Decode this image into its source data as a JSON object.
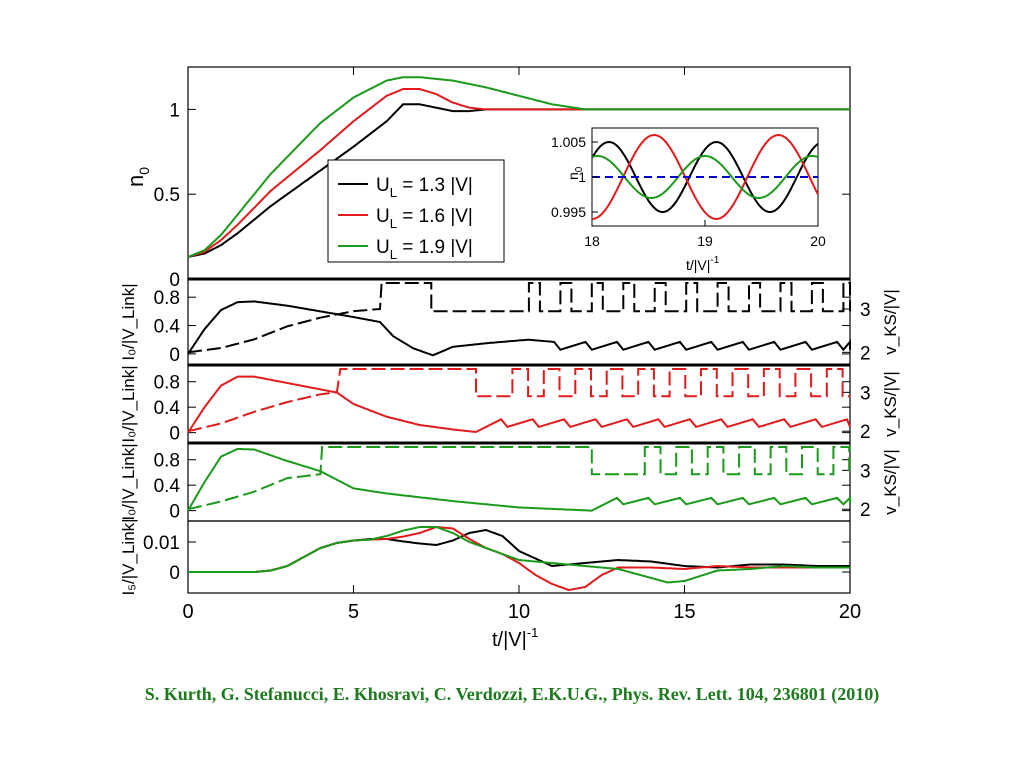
{
  "citation": "S. Kurth, G. Stefanucci, E. Khosravi, C. Verdozzi, E.K.U.G., Phys. Rev. Lett. 104, 236801 (2010)",
  "colors": {
    "black": "#000000",
    "red": "#e31a1c",
    "green": "#1a9a1a",
    "blue": "#0000cc",
    "citation": "#1e7a1e"
  },
  "chart_data": [
    {
      "type": "line",
      "ylabel": "n",
      "ylabel_sub": "0",
      "xlim": [
        0,
        20
      ],
      "ylim": [
        0,
        1.25
      ],
      "yticks": [
        "0",
        "0.5",
        "1"
      ],
      "legend_position": "center",
      "series": [
        {
          "name": "U_L = 1.3 |V|",
          "label_main": "U",
          "label_sub": "L",
          "label_rest": " = 1.3 |V|",
          "color": "black",
          "x": [
            0,
            0.5,
            1,
            1.5,
            2,
            2.5,
            3,
            4,
            5,
            6,
            6.5,
            7,
            7.5,
            8,
            8.5,
            9,
            10,
            12,
            14,
            16,
            18,
            20
          ],
          "y": [
            0.13,
            0.15,
            0.2,
            0.27,
            0.35,
            0.43,
            0.5,
            0.64,
            0.78,
            0.93,
            1.03,
            1.03,
            1.01,
            0.99,
            0.99,
            1.0,
            1.0,
            1.0,
            1.0,
            1.0,
            1.0,
            1.0
          ]
        },
        {
          "name": "U_L = 1.6 |V|",
          "label_main": "U",
          "label_sub": "L",
          "label_rest": " = 1.6 |V|",
          "color": "red",
          "x": [
            0,
            0.5,
            1,
            1.5,
            2,
            2.5,
            3,
            4,
            5,
            6,
            6.5,
            7,
            7.5,
            8,
            8.5,
            9,
            10,
            12,
            14,
            16,
            18,
            20
          ],
          "y": [
            0.13,
            0.16,
            0.23,
            0.32,
            0.42,
            0.52,
            0.6,
            0.76,
            0.93,
            1.08,
            1.12,
            1.12,
            1.09,
            1.04,
            1.01,
            1.0,
            1.0,
            1.0,
            1.0,
            1.0,
            1.0,
            1.0
          ]
        },
        {
          "name": "U_L = 1.9 |V|",
          "label_main": "U",
          "label_sub": "L",
          "label_rest": " = 1.9 |V|",
          "color": "green",
          "x": [
            0,
            0.5,
            1,
            1.5,
            2,
            2.5,
            3,
            4,
            5,
            6,
            6.5,
            7,
            7.5,
            8,
            8.5,
            9,
            10,
            11,
            12,
            14,
            16,
            18,
            20
          ],
          "y": [
            0.13,
            0.17,
            0.26,
            0.38,
            0.5,
            0.62,
            0.72,
            0.92,
            1.07,
            1.17,
            1.19,
            1.19,
            1.18,
            1.17,
            1.15,
            1.13,
            1.08,
            1.03,
            1.0,
            1.0,
            1.0,
            1.0,
            1.0
          ]
        }
      ]
    },
    {
      "type": "line",
      "ylabel": "n",
      "ylabel_sub": "0",
      "xlabel": "t/|V|",
      "xlabel_sup": "-1",
      "xlim": [
        18,
        20
      ],
      "ylim": [
        0.993,
        1.007
      ],
      "xticks": [
        "18",
        "19",
        "20"
      ],
      "yticks": [
        "0.995",
        "1",
        "1.005"
      ],
      "reference_line": {
        "y": 1.0,
        "color": "blue",
        "style": "dashed"
      },
      "series": [
        {
          "color": "black",
          "period": 0.95,
          "amplitude": 0.005,
          "phase_x": 18.15
        },
        {
          "color": "red",
          "period": 1.1,
          "amplitude": 0.006,
          "phase_x": 18.55
        },
        {
          "color": "green",
          "period": 0.95,
          "amplitude": 0.003,
          "phase_x": 18.05
        }
      ]
    },
    {
      "type": "line",
      "ylabel_left": "I₀/|V_Link|",
      "ylabel_right": "v_KS/|V|",
      "yticks_left": [
        "0",
        "0.4",
        "0.8"
      ],
      "yticks_right": [
        "2",
        "3"
      ],
      "xlim": [
        0,
        20
      ],
      "ylim_left": [
        -0.1,
        1.0
      ],
      "ylim_right": [
        1.8,
        3.6
      ],
      "series": [
        {
          "color": "black",
          "style": "solid",
          "role": "current",
          "x": [
            0,
            0.5,
            1,
            1.5,
            2,
            3,
            4,
            5,
            5.8,
            6.2,
            6.8,
            7.4,
            8,
            9,
            10,
            10.3
          ],
          "y": [
            0,
            0.35,
            0.62,
            0.73,
            0.74,
            0.68,
            0.6,
            0.52,
            0.45,
            0.25,
            0.08,
            -0.02,
            0.1,
            0.15,
            0.19,
            0.2
          ],
          "saw_until": 20,
          "saw_period": 0.95,
          "saw_high": 0.17,
          "saw_low": 0.06
        },
        {
          "color": "black",
          "style": "solid",
          "role": "potential",
          "x": [
            0,
            1,
            2,
            3,
            4,
            5,
            5.8
          ],
          "y": [
            2.0,
            2.1,
            2.3,
            2.6,
            2.8,
            2.95,
            3.0
          ],
          "switch_on": 5.85,
          "switch_off": 7.35,
          "high": 3.6,
          "low": 2.95,
          "osc_from": 10.3,
          "osc_period": 0.95,
          "osc_duty": 0.35
        }
      ]
    },
    {
      "type": "line",
      "ylabel_left": "I₀/|V_Link|",
      "ylabel_right": "v_KS/|V|",
      "yticks_left": [
        "0",
        "0.4",
        "0.8"
      ],
      "yticks_right": [
        "2",
        "3"
      ],
      "xlim": [
        0,
        20
      ],
      "ylim_left": [
        -0.1,
        1.0
      ],
      "ylim_right": [
        1.8,
        3.6
      ],
      "series": [
        {
          "color": "red",
          "style": "solid",
          "role": "current",
          "x": [
            0,
            0.5,
            1,
            1.5,
            2,
            3,
            4,
            4.5,
            5,
            6,
            7,
            8,
            8.7
          ],
          "y": [
            0,
            0.4,
            0.74,
            0.88,
            0.88,
            0.78,
            0.68,
            0.63,
            0.45,
            0.25,
            0.12,
            0.05,
            0.01
          ],
          "saw_from": 8.7,
          "saw_until": 20,
          "saw_period": 0.95,
          "saw_high": 0.21,
          "saw_low": 0.09
        },
        {
          "color": "red",
          "style": "solid",
          "role": "potential",
          "x": [
            0,
            1,
            2,
            3,
            4,
            4.5
          ],
          "y": [
            2.0,
            2.2,
            2.5,
            2.75,
            2.95,
            3.0
          ],
          "switch_on": 4.6,
          "switch_off": 8.7,
          "high": 3.6,
          "low": 2.9,
          "osc_from": 9.8,
          "osc_period": 0.95,
          "osc_duty": 0.5
        }
      ]
    },
    {
      "type": "line",
      "ylabel_left": "I₀/|V_Link|",
      "ylabel_right": "v_KS/|V|",
      "yticks_left": [
        "0",
        "0.4",
        "0.8"
      ],
      "yticks_right": [
        "2",
        "3"
      ],
      "xlim": [
        0,
        20
      ],
      "ylim_left": [
        -0.1,
        1.0
      ],
      "ylim_right": [
        1.8,
        3.6
      ],
      "series": [
        {
          "color": "green",
          "style": "solid",
          "role": "current",
          "x": [
            0,
            0.5,
            1,
            1.5,
            2,
            3,
            4,
            5,
            6,
            8,
            10,
            12.2
          ],
          "y": [
            0,
            0.45,
            0.85,
            0.97,
            0.96,
            0.78,
            0.62,
            0.35,
            0.27,
            0.15,
            0.05,
            0.0
          ],
          "saw_from": 12.2,
          "saw_until": 20,
          "saw_period": 0.95,
          "saw_high": 0.2,
          "saw_low": 0.1
        },
        {
          "color": "green",
          "style": "solid",
          "role": "potential",
          "x": [
            0,
            1,
            2,
            3,
            4
          ],
          "y": [
            2.0,
            2.2,
            2.45,
            2.8,
            2.9
          ],
          "switch_on": 4.05,
          "switch_off": 12.2,
          "high": 3.6,
          "low": 2.9,
          "osc_from": 13.8,
          "osc_period": 0.95,
          "osc_duty": 0.5
        }
      ]
    },
    {
      "type": "line",
      "ylabel": "I₅/|V_Link|",
      "xlabel": "t/|V|",
      "xlabel_sup": "-1",
      "xlim": [
        0,
        20
      ],
      "ylim": [
        -0.007,
        0.017
      ],
      "xticks": [
        "0",
        "5",
        "10",
        "15",
        "20"
      ],
      "yticks": [
        "0",
        "0.01"
      ],
      "series": [
        {
          "color": "black",
          "x": [
            0,
            2,
            2.5,
            3,
            3.5,
            4,
            4.5,
            5,
            5.5,
            6,
            6.5,
            7,
            7.5,
            8,
            8.5,
            9,
            9.5,
            10,
            11,
            12,
            13,
            14,
            15,
            16,
            17,
            18,
            19,
            20
          ],
          "y": [
            0,
            0,
            0.0005,
            0.002,
            0.005,
            0.008,
            0.0097,
            0.0105,
            0.011,
            0.011,
            0.0102,
            0.0095,
            0.009,
            0.0105,
            0.013,
            0.014,
            0.012,
            0.007,
            0.002,
            0.003,
            0.004,
            0.0035,
            0.002,
            0.0015,
            0.0025,
            0.0025,
            0.002,
            0.002
          ]
        },
        {
          "color": "red",
          "x": [
            0,
            2,
            2.5,
            3,
            3.5,
            4,
            4.5,
            5,
            5.5,
            6,
            6.5,
            7,
            7.5,
            8,
            8.5,
            9,
            9.5,
            10,
            10.5,
            11,
            11.5,
            12,
            12.5,
            13,
            14,
            15,
            16,
            17,
            18,
            19,
            20
          ],
          "y": [
            0,
            0,
            0.0005,
            0.002,
            0.005,
            0.008,
            0.0097,
            0.0105,
            0.0108,
            0.011,
            0.0118,
            0.013,
            0.015,
            0.0145,
            0.011,
            0.008,
            0.006,
            0.003,
            -0.001,
            -0.004,
            -0.006,
            -0.005,
            -0.001,
            0.0015,
            0.0015,
            0.001,
            0.002,
            0.0015,
            0.0015,
            0.0015,
            0.0015
          ]
        },
        {
          "color": "green",
          "x": [
            0,
            2,
            2.5,
            3,
            3.5,
            4,
            4.5,
            5,
            5.5,
            6,
            6.5,
            7,
            7.5,
            8,
            8.5,
            9,
            10,
            11,
            12,
            13,
            14,
            14.5,
            15,
            16,
            17,
            18,
            19,
            20
          ],
          "y": [
            0,
            0,
            0.0005,
            0.002,
            0.005,
            0.008,
            0.0097,
            0.0105,
            0.0108,
            0.012,
            0.0138,
            0.015,
            0.015,
            0.013,
            0.01,
            0.008,
            0.004,
            0.003,
            0.002,
            0.001,
            -0.002,
            -0.0035,
            -0.003,
            0.0005,
            0.001,
            0.002,
            0.0015,
            0.0015
          ]
        }
      ]
    }
  ]
}
